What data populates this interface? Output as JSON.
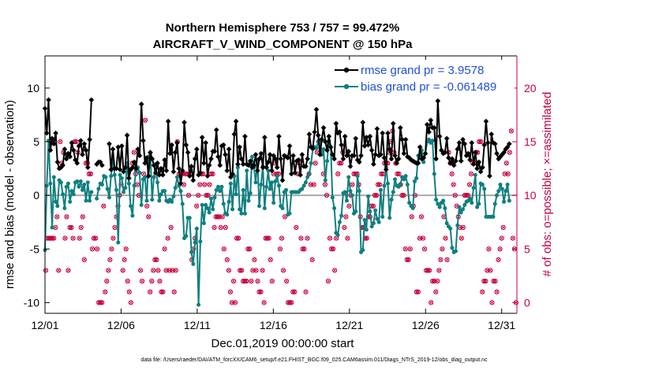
{
  "chart_data": {
    "type": "line",
    "title": "Northern Hemisphere 753 / 757 = 99.472%",
    "subtitle": "AIRCRAFT_V_WIND_COMPONENT @ 150 hPa",
    "xlabel": "Dec.01,2019 00:00:00 start",
    "ylabel": "rmse and bias (model - observation)",
    "ylabel_right": "# of obs: o=possible; ×=assimilated",
    "footnote": "data file: /Users/raeder/DAI/ATM_forcXX/CAM6_setup/f.e21.FHIST_BGC.f09_025.CAM6assim.011/Diags_NTrS_2019-12/obs_diag_output.nc",
    "x_tick_labels": [
      "12/01",
      "12/06",
      "12/11",
      "12/16",
      "12/21",
      "12/26",
      "12/31"
    ],
    "x_tick_days": [
      1,
      6,
      11,
      16,
      21,
      26,
      31
    ],
    "xlim": [
      1,
      32
    ],
    "ylim": [
      -11,
      13
    ],
    "y_ticks": [
      "-10",
      "-5",
      "0",
      "5",
      "10"
    ],
    "ylim_right": [
      -1,
      23
    ],
    "y_ticks_right": [
      "0",
      "5",
      "10",
      "15",
      "20"
    ],
    "grid": false,
    "legend_position": "top-right",
    "series": [
      {
        "name": "rmse",
        "legend_label": "rmse grand pr = 3.9578",
        "color": "#000000",
        "marker": "asterisk",
        "values": [
          8.1,
          5.8,
          8.9,
          4.2,
          5.3,
          4.8,
          5.8,
          3.1,
          2.5,
          2.6,
          2.8,
          4.3,
          3.4,
          3.9,
          3.6,
          4.9,
          4.2,
          3.3,
          3.0,
          4.6,
          5.1,
          3.8,
          4.8,
          4.2,
          2.6,
          5.2,
          8.9,
          null,
          null,
          2.9,
          3.1,
          3.1,
          2.8,
          null,
          null,
          null,
          4.8,
          2.4,
          4.3,
          2.5,
          2.5,
          4.5,
          2.4,
          4.6,
          2.2,
          2.6,
          5.6,
          1.6,
          2.4,
          2.6,
          3.1,
          2.5,
          4.3,
          3.7,
          8.5,
          5.1,
          3.0,
          3.5,
          1.8,
          4.0,
          3.4,
          2.8,
          2.1,
          3.0,
          1.9,
          2.5,
          1.9,
          3.3,
          2.3,
          6.9,
          3.9,
          4.7,
          2.2,
          4.0,
          4.9,
          2.5,
          1.1,
          2.3,
          6.8,
          4.7,
          4.0,
          1.8,
          2.7,
          1.4,
          3.4,
          4.3,
          1.9,
          2.1,
          5.4,
          3.0,
          4.9,
          1.8,
          2.8,
          3.4,
          4.1,
          4.1,
          6.1,
          3.6,
          2.8,
          4.6,
          4.7,
          3.8,
          2.3,
          4.3,
          1.7,
          2.0,
          5.7,
          6.9,
          2.9,
          4.5,
          3.4,
          2.9,
          5.5,
          2.9,
          2.8,
          3.2,
          2.6,
          2.8,
          3.8,
          2.3,
          3.4,
          3.9,
          2.6,
          5.4,
          2.6,
          3.1,
          3.8,
          2.3,
          3.7,
          3.4,
          2.6,
          5.5,
          3.4,
          1.4,
          3.7,
          3.6,
          3.5,
          4.6,
          2.0,
          3.7,
          2.1,
          3.2,
          3.3,
          1.9,
          3.8,
          2.7,
          2.7,
          3.4,
          5.7,
          4.5,
          4.4,
          5.9,
          8.0,
          5.6,
          3.8,
          5.2,
          6.3,
          5.0,
          4.2,
          5.5,
          4.5,
          3.8,
          3.4,
          6.7,
          5.8,
          5.9,
          4.7,
          3.4,
          5.5,
          3.7,
          4.1,
          2.7,
          3.7,
          3.7,
          5.3,
          3.3,
          3.1,
          3.7,
          6.8,
          4.6,
          5.4,
          4.7,
          5.5,
          4.2,
          2.9,
          3.8,
          6.2,
          3.7,
          3.8,
          5.8,
          3.5,
          2.4,
          5.8,
          4.3,
          3.4,
          6.7,
          3.7,
          3.0,
          3.4,
          6.3,
          5.2,
          3.9,
          5.2,
          3.6,
          3.5,
          3.3,
          3.2,
          3.1,
          3.0,
          3.0,
          4.5,
          3.4,
          3.5,
          3.9,
          6.6,
          5.9,
          7.0,
          6.3,
          6.3,
          3.4,
          8.8,
          5.5,
          4.2,
          3.9,
          4.0,
          5.3,
          3.5,
          3.0,
          3.4,
          2.8,
          3.2,
          4.3,
          4.9,
          3.2,
          5.2,
          4.8,
          3.7,
          3.9,
          3.3,
          4.9,
          2.9,
          4.0,
          2.5,
          3.1,
          2.2,
          2.6,
          4.7,
          6.9,
          4.9,
          1.8,
          5.7,
          4.9,
          4.8,
          3.9,
          3.4,
          3.6,
          3.8,
          4.0,
          4.3,
          4.5,
          4.8
        ]
      },
      {
        "name": "bias",
        "legend_label": "bias grand pr = -0.061489",
        "color": "#0f7f80",
        "marker": "dot",
        "values": [
          -5.1,
          0.9,
          5.1,
          1.1,
          -3.0,
          1.7,
          -0.6,
          -1.0,
          1.4,
          1.2,
          0.1,
          -1.2,
          0.8,
          1.1,
          -0.6,
          0.4,
          0.1,
          1.2,
          1.3,
          0.8,
          1.3,
          0.5,
          1.0,
          -0.5,
          1.2,
          -0.5,
          0.3,
          null,
          null,
          -0.3,
          0.6,
          1.1,
          1.0,
          1.8,
          1.7,
          0.6,
          -0.2,
          1.8,
          3.2,
          1.9,
          0.5,
          -4.4,
          1.9,
          1.6,
          0.3,
          0.7,
          3.0,
          1.1,
          -1.0,
          -1.9,
          0.9,
          2.3,
          2.6,
          2.1,
          -0.9,
          1.5,
          1.7,
          -0.5,
          3.6,
          3.9,
          -0.4,
          1.7,
          2.9,
          1.2,
          -0.5,
          0.1,
          0.4,
          0.4,
          -0.5,
          -0.6,
          -0.4,
          -0.6,
          -0.1,
          0.7,
          1.7,
          0.9,
          0.4,
          -0.8,
          -4.0,
          -3.8,
          -2.1,
          -2.1,
          -5.3,
          -6.4,
          -4.4,
          -3.1,
          -10.2,
          -4.3,
          -0.9,
          -2.6,
          -0.9,
          -1.2,
          -1.6,
          -0.3,
          -1.3,
          -0.2,
          0.5,
          0.8,
          0.4,
          0.8,
          -0.8,
          -1.7,
          -1.8,
          -0.6,
          1.1,
          -1.3,
          1.8,
          0.1,
          2.6,
          -1.3,
          -1.7,
          0.5,
          -1.7,
          2.3,
          -0.5,
          0.2,
          3.6,
          2.6,
          1.2,
          3.2,
          -1.0,
          1.0,
          2.7,
          -1.2,
          0.8,
          2.3,
          0.6,
          1.2,
          -0.7,
          1.3,
          1.8,
          0.9,
          -1.0,
          -1.2,
          0.3,
          0.5,
          -1.8,
          -1.7,
          0.3,
          0.3,
          0.3,
          0.3,
          0.3,
          0.5,
          0.6,
          0.9,
          1.2,
          1.7,
          2.0,
          3.0,
          4.3,
          4.5,
          4.4,
          5.0,
          5.2,
          3.8,
          4.3,
          1.4,
          3.2,
          5.1,
          4.5,
          -0.2,
          -1.2,
          -3.5,
          -3.7,
          -2.5,
          -1.9,
          0.2,
          0.3,
          -0.5,
          1.7,
          0.4,
          0.0,
          -1.7,
          -1.5,
          1.8,
          0.4,
          -5.3,
          -5.1,
          -2.3,
          -3.2,
          -0.1,
          -1.5,
          -2.9,
          -2.6,
          -1.4,
          -2.2,
          -2.5,
          0.5,
          -2.0,
          0.9,
          2.6,
          1.1,
          -2.1,
          -0.4,
          0.3,
          1.5,
          0.9,
          0.8,
          1.0,
          1.7,
          1.5,
          1.8,
          1.0,
          -0.7,
          -1.0,
          -1.2,
          1.3,
          1.6,
          3.7,
          3.5,
          4.2,
          3.1,
          3.9,
          5.0,
          5.2,
          4.9,
          5.1,
          2.0,
          -0.4,
          -0.8,
          -1.1,
          -0.7,
          -0.5,
          -1.2,
          -2.6,
          -2.9,
          -3.1,
          -4.9,
          -5.3,
          -5.2,
          -2.8,
          -1.1,
          -1.6,
          -1.3,
          -0.9,
          -0.6,
          -0.5,
          -0.3,
          -0.7,
          0.7,
          1.9,
          -1.1,
          -0.8,
          1.1,
          1.0,
          0.6,
          -2.0,
          -2.0,
          -2.0,
          -2.0,
          -2.0,
          -0.8,
          0.0,
          0.4,
          1.0,
          0.6,
          -0.6,
          0.4,
          1.0,
          -0.5
        ]
      },
      {
        "name": "obs_possible",
        "axis": "right",
        "color": "#c8003c",
        "marker": "circle",
        "values": [
          3,
          6,
          6,
          6,
          6,
          6,
          7,
          8,
          3,
          15,
          13,
          14,
          6,
          8,
          3,
          7,
          7,
          6,
          15,
          15,
          14,
          6,
          7,
          8,
          4,
          13,
          13,
          12,
          12,
          5,
          6,
          6,
          5,
          0,
          0,
          0,
          9,
          1,
          2,
          3,
          4,
          5,
          6,
          7,
          8,
          9,
          10,
          11,
          3,
          4,
          5,
          2,
          1,
          0,
          13,
          14,
          12,
          11,
          10,
          3,
          2,
          12,
          17,
          9,
          8,
          1,
          2,
          3,
          4,
          4,
          3,
          2,
          1,
          1,
          5,
          3,
          6,
          3,
          7,
          3,
          1,
          3,
          15,
          12,
          12,
          12,
          11,
          12,
          12,
          10,
          12,
          4,
          5,
          6,
          9,
          10,
          11,
          12,
          12,
          11,
          10,
          10,
          11,
          12,
          12,
          7,
          8,
          8,
          8,
          7,
          8,
          5,
          7,
          4,
          3,
          1,
          0,
          2,
          0,
          6,
          6,
          3,
          3,
          2,
          2,
          2,
          5,
          5,
          2,
          3,
          4,
          3,
          2,
          1,
          1,
          3,
          0,
          6,
          6,
          6,
          4,
          2,
          12,
          13,
          12,
          12,
          5,
          6,
          3,
          8,
          2,
          0,
          0,
          0,
          1,
          1,
          7,
          12,
          13,
          6,
          5,
          5,
          1,
          6,
          12,
          11,
          4,
          11,
          13,
          14,
          15,
          15,
          14,
          12,
          11,
          10,
          2,
          6,
          5,
          5,
          3,
          6,
          12,
          13,
          13,
          14,
          7,
          8,
          6,
          9,
          10,
          11,
          12,
          12,
          12,
          11,
          8,
          7,
          7,
          6,
          6,
          8,
          8,
          9,
          9,
          10,
          10,
          11,
          11,
          12,
          12,
          13,
          13,
          13,
          14,
          15,
          16,
          14,
          13,
          12,
          12,
          11,
          10,
          10,
          5,
          4,
          4,
          5,
          8,
          9,
          10,
          1,
          1,
          6,
          8,
          6,
          5,
          3,
          3,
          3,
          0,
          2,
          2,
          1,
          2,
          3,
          4,
          5,
          8,
          6,
          4,
          14,
          13,
          12,
          11,
          10,
          9,
          8,
          7,
          6,
          7,
          10,
          10,
          10,
          11,
          12,
          13,
          13,
          14,
          14,
          15,
          15,
          1,
          2,
          2,
          3,
          5,
          3,
          0,
          2,
          2,
          1,
          4,
          5,
          6,
          7,
          12,
          13,
          12,
          14,
          16,
          6,
          5,
          0
        ]
      }
    ],
    "reference_line": {
      "y": 0,
      "color": "#aaaaaa"
    }
  }
}
